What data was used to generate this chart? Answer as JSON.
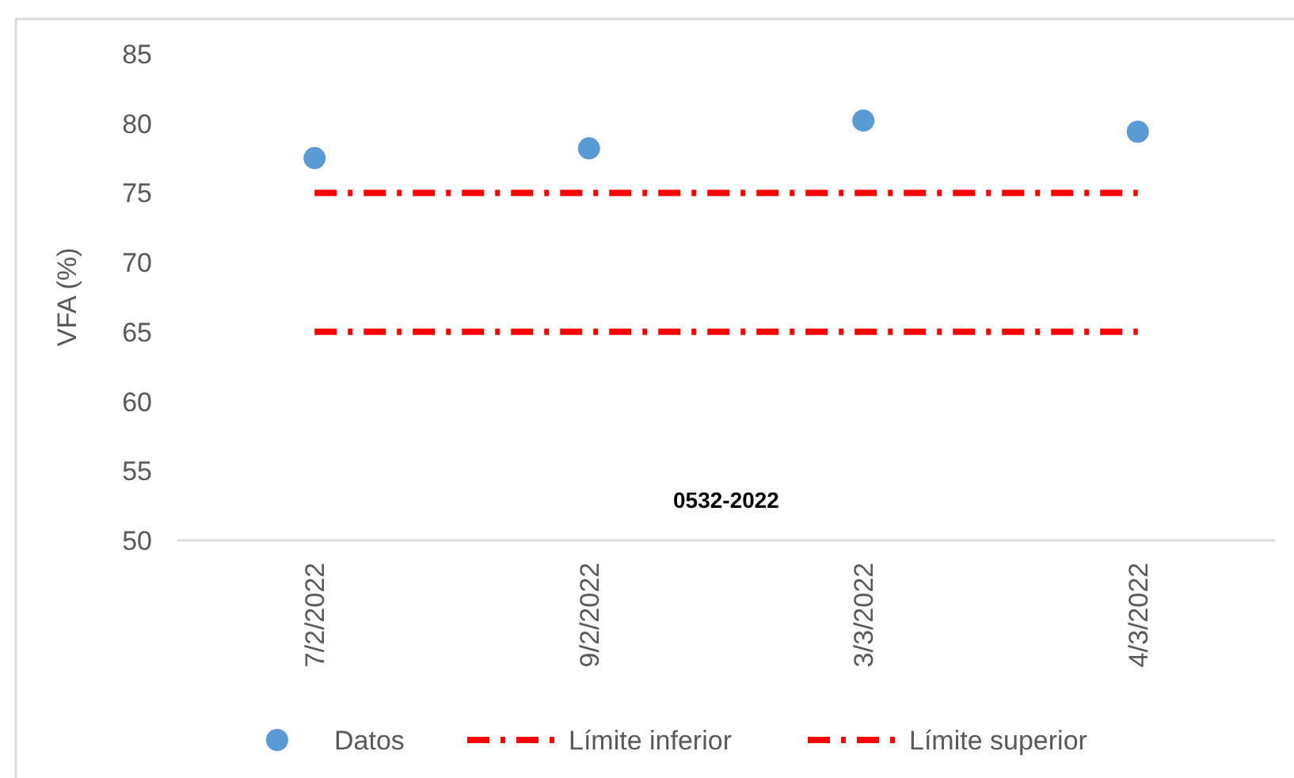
{
  "chart_data": {
    "type": "scatter",
    "ylabel": "VFA (%)",
    "categories": [
      "7/2/2022",
      "9/2/2022",
      "3/3/2022",
      "4/3/2022"
    ],
    "series": [
      {
        "name": "Datos",
        "color": "#5b9bd5",
        "marker": "circle",
        "values": [
          77.5,
          78.2,
          80.2,
          79.4
        ]
      },
      {
        "name": "Límite inferior",
        "type": "line",
        "color": "#ff0000",
        "marker": "none",
        "line_style": "dashed",
        "values": [
          65,
          65,
          65,
          65
        ]
      },
      {
        "name": "Límite superior",
        "type": "line",
        "color": "#ff0000",
        "marker": "none",
        "line_style": "dashed",
        "values": [
          75,
          75,
          75,
          75
        ]
      }
    ],
    "ylim": [
      50,
      85
    ],
    "yticks": [
      50,
      55,
      60,
      65,
      70,
      75,
      80,
      85
    ],
    "grid": false,
    "legend": "bottom",
    "annotations": [
      "0532-2022"
    ]
  }
}
